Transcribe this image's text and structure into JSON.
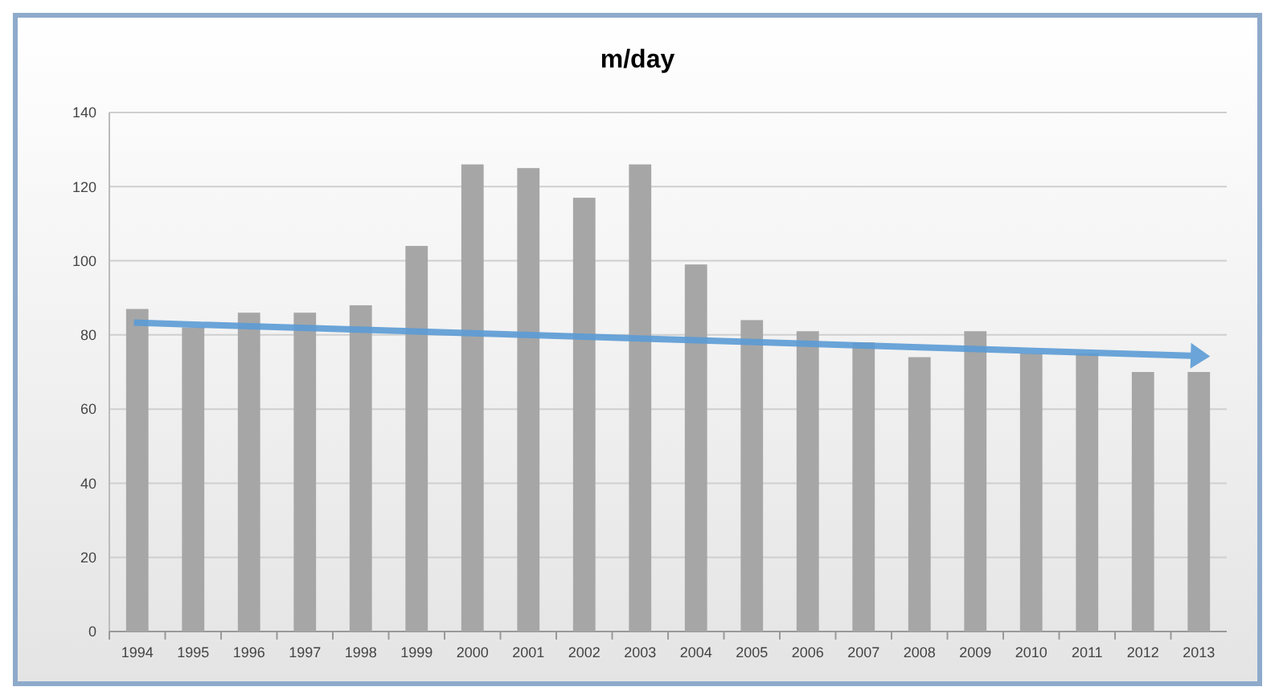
{
  "chart_data": {
    "type": "bar",
    "title": "m/day",
    "categories": [
      "1994",
      "1995",
      "1996",
      "1997",
      "1998",
      "1999",
      "2000",
      "2001",
      "2002",
      "2003",
      "2004",
      "2005",
      "2006",
      "2007",
      "2008",
      "2009",
      "2010",
      "2011",
      "2012",
      "2013"
    ],
    "series": [
      {
        "color": "#a6a6a6",
        "values": [
          87,
          82,
          86,
          86,
          88,
          104,
          126,
          125,
          117,
          126,
          99,
          84,
          81,
          78,
          74,
          81,
          75,
          75,
          70,
          70
        ]
      }
    ],
    "ylim": [
      0,
      140
    ],
    "yticks": [
      0,
      20,
      40,
      60,
      80,
      100,
      120,
      140
    ],
    "grid": "y"
  }
}
